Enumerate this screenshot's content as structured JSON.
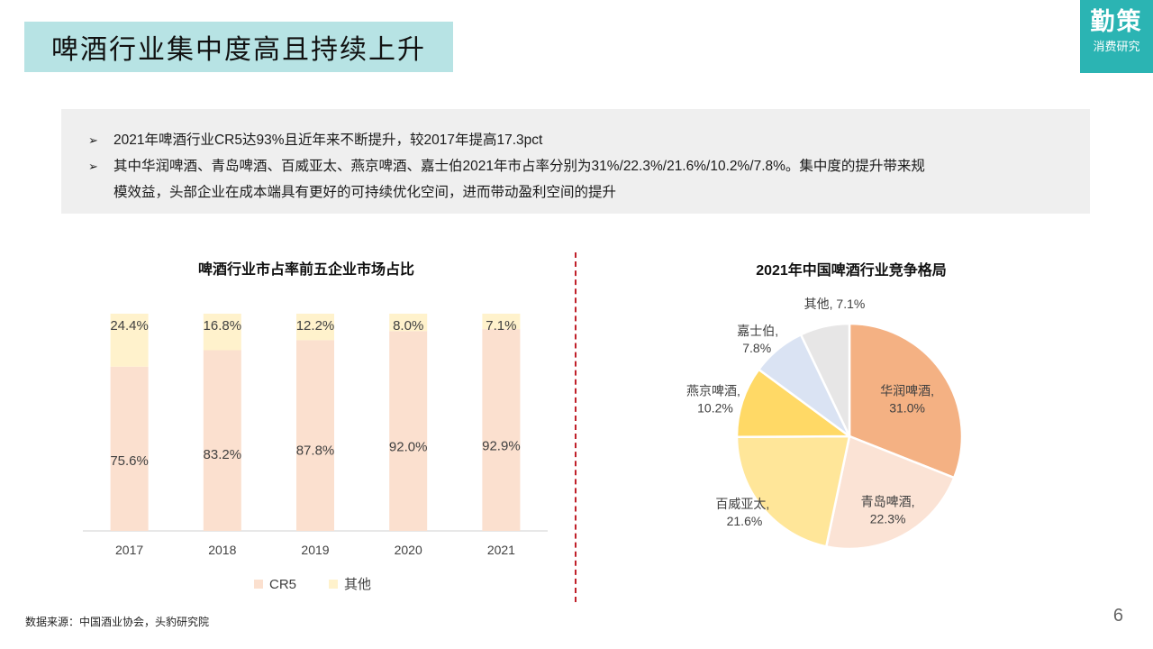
{
  "header": {
    "title": "啤酒行业集中度高且持续上升"
  },
  "logo": {
    "line1": "勤策",
    "line2": "消费研究"
  },
  "summary": {
    "bullet1": "2021年啤酒行业CR5达93%且近年来不断提升，较2017年提高17.3pct",
    "bullet2_line1": "其中华润啤酒、青岛啤酒、百威亚太、燕京啤酒、嘉士伯2021年市占率分别为31%/22.3%/21.6%/10.2%/7.8%。集中度的提升带来规",
    "bullet2_line2": "模效益，头部企业在成本端具有更好的可持续优化空间，进而带动盈利空间的提升",
    "bullet_marker": "➢"
  },
  "footer": {
    "source": "数据来源：中国酒业协会，头豹研究院",
    "page": "6"
  },
  "colors": {
    "cr5": "#fbe0cf",
    "other_bar": "#fff2cc",
    "pie": [
      "#f4b183",
      "#fbe3d5",
      "#ffe699",
      "#ffd966",
      "#dae3f3",
      "#e7e6e6"
    ]
  },
  "chart_data": [
    {
      "type": "bar",
      "title": "啤酒行业市占率前五企业市场占比",
      "categories": [
        "2017",
        "2018",
        "2019",
        "2020",
        "2021"
      ],
      "series": [
        {
          "name": "CR5",
          "values": [
            75.6,
            83.2,
            87.8,
            92.0,
            92.9
          ],
          "labels": [
            "75.6%",
            "83.2%",
            "87.8%",
            "92.0%",
            "92.9%"
          ]
        },
        {
          "name": "其他",
          "values": [
            24.4,
            16.8,
            12.2,
            8.0,
            7.1
          ],
          "labels": [
            "24.4%",
            "16.8%",
            "12.2%",
            "8.0%",
            "7.1%"
          ]
        }
      ],
      "stacked": true,
      "ylim": [
        0,
        100
      ],
      "legend": "bottom"
    },
    {
      "type": "pie",
      "title": "2021年中国啤酒行业竞争格局",
      "slices": [
        {
          "name": "华润啤酒",
          "value": 31.0,
          "label": "华润啤酒,",
          "pct": "31.0%"
        },
        {
          "name": "青岛啤酒",
          "value": 22.3,
          "label": "青岛啤酒,",
          "pct": "22.3%"
        },
        {
          "name": "百威亚太",
          "value": 21.6,
          "label": "百威亚太,",
          "pct": "21.6%"
        },
        {
          "name": "燕京啤酒",
          "value": 10.2,
          "label": "燕京啤酒,",
          "pct": "10.2%"
        },
        {
          "name": "嘉士伯",
          "value": 7.8,
          "label": "嘉士伯,",
          "pct": "7.8%"
        },
        {
          "name": "其他",
          "value": 7.1,
          "label": "其他, 7.1%",
          "pct": ""
        }
      ]
    }
  ]
}
